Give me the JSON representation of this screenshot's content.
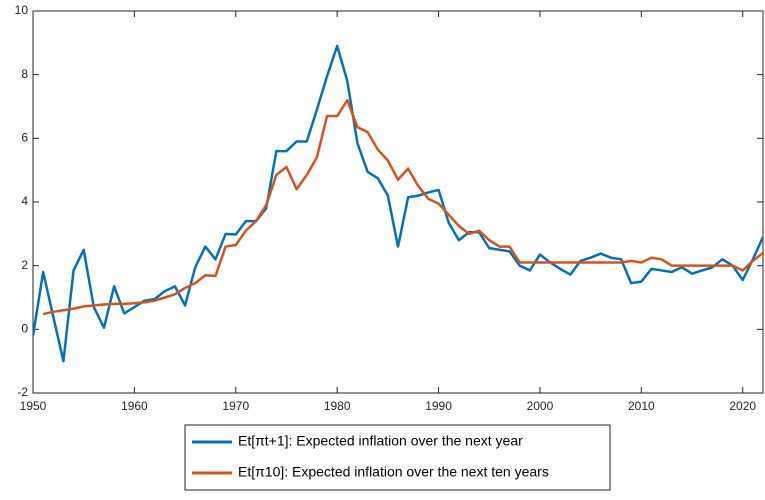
{
  "chart_data": {
    "type": "line",
    "x": [
      1950,
      1951,
      1952,
      1953,
      1954,
      1955,
      1956,
      1957,
      1958,
      1959,
      1960,
      1961,
      1962,
      1963,
      1964,
      1965,
      1966,
      1967,
      1968,
      1969,
      1970,
      1971,
      1972,
      1973,
      1974,
      1975,
      1976,
      1977,
      1978,
      1979,
      1980,
      1981,
      1982,
      1983,
      1984,
      1985,
      1986,
      1987,
      1988,
      1989,
      1990,
      1991,
      1992,
      1993,
      1994,
      1995,
      1996,
      1997,
      1998,
      1999,
      2000,
      2001,
      2002,
      2003,
      2004,
      2005,
      2006,
      2007,
      2008,
      2009,
      2010,
      2011,
      2012,
      2013,
      2014,
      2015,
      2016,
      2017,
      2018,
      2019,
      2020,
      2021,
      2022
    ],
    "series": [
      {
        "name": "Et[πt+1]: Expected inflation over the next year",
        "color": "#0072bd",
        "values": [
          -0.2,
          1.8,
          0.4,
          -1.0,
          1.85,
          2.5,
          0.7,
          0.05,
          1.35,
          0.5,
          0.7,
          0.9,
          0.95,
          1.2,
          1.35,
          0.75,
          1.95,
          2.6,
          2.2,
          3.0,
          2.98,
          3.4,
          3.4,
          3.8,
          5.6,
          5.6,
          5.9,
          5.9,
          6.9,
          7.95,
          8.9,
          7.8,
          5.85,
          4.95,
          4.75,
          4.2,
          2.6,
          4.15,
          4.2,
          4.3,
          4.38,
          3.35,
          2.8,
          3.05,
          3.05,
          2.55,
          2.5,
          2.45,
          2.0,
          1.85,
          2.35,
          2.1,
          1.9,
          1.72,
          2.15,
          2.25,
          2.38,
          2.25,
          2.2,
          1.45,
          1.5,
          1.9,
          1.85,
          1.8,
          1.95,
          1.75,
          1.85,
          1.95,
          2.2,
          2.0,
          1.55,
          2.2,
          2.9
        ]
      },
      {
        "name": "Et[π10]: Expected inflation over the next ten years",
        "color": "#d95319",
        "values": [
          null,
          0.48,
          0.55,
          0.6,
          0.65,
          0.72,
          0.75,
          0.78,
          0.8,
          0.8,
          0.82,
          0.85,
          0.9,
          1.0,
          1.1,
          1.3,
          1.45,
          1.7,
          1.68,
          2.6,
          2.65,
          3.1,
          3.4,
          3.9,
          4.85,
          5.1,
          4.4,
          4.85,
          5.4,
          6.7,
          6.7,
          7.2,
          6.35,
          6.2,
          5.65,
          5.3,
          4.7,
          5.05,
          4.5,
          4.1,
          3.95,
          3.6,
          3.25,
          3.0,
          3.1,
          2.8,
          2.6,
          2.6,
          2.1,
          2.1,
          2.1,
          2.1,
          2.1,
          2.1,
          2.1,
          2.1,
          2.1,
          2.1,
          2.1,
          2.15,
          2.1,
          2.25,
          2.2,
          2.0,
          2.0,
          2.0,
          2.0,
          2.0,
          2.0,
          2.0,
          1.85,
          2.15,
          2.4
        ]
      }
    ],
    "xlim": [
      1950,
      2022
    ],
    "xticks": [
      1950,
      1960,
      1970,
      1980,
      1990,
      2000,
      2010,
      2020
    ],
    "ylim": [
      -2,
      10
    ],
    "yticks": [
      -2,
      0,
      2,
      4,
      6,
      8,
      10
    ],
    "grid": false
  }
}
